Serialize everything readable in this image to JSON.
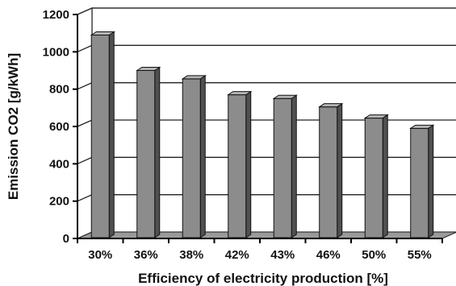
{
  "chart_data": {
    "type": "bar",
    "style": "3d",
    "title": "",
    "xlabel": "Efficiency of electricity production [%]",
    "ylabel": "Emission CO2 [g/kWh]",
    "categories": [
      "30%",
      "36%",
      "38%",
      "42%",
      "43%",
      "46%",
      "50%",
      "55%"
    ],
    "values": [
      1090,
      900,
      855,
      770,
      750,
      705,
      645,
      590
    ],
    "ylim": [
      0,
      1200
    ],
    "yticks": [
      0,
      200,
      400,
      600,
      800,
      1000,
      1200
    ],
    "grid": true,
    "legend": "none",
    "colors": {
      "bar_front": "#8c8c8c",
      "bar_side": "#505050",
      "bar_top": "#b4b4b4",
      "plot_back": "#ffffff",
      "floor": "#9a9a9a",
      "grid": "#222222",
      "text": "#111111"
    }
  }
}
